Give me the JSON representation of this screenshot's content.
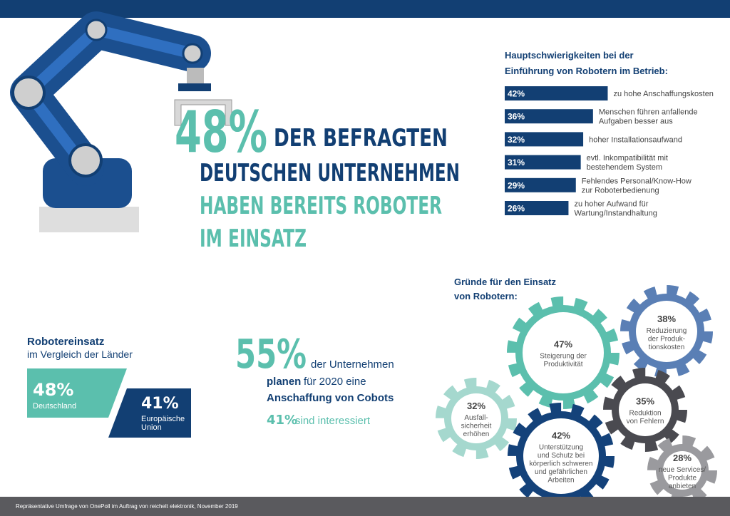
{
  "headline": {
    "percent": "48%",
    "lines": [
      "DER BEFRAGTEN",
      "DEUTSCHEN UNTERNEHMEN",
      "HABEN BEREITS ROBOTER",
      "IM EINSATZ"
    ]
  },
  "chart_data": {
    "type": "bar",
    "title": "Hauptschwierigkeiten bei der\nEinführung von Robotern im Betrieb:",
    "categories": [
      "zu hohe Anschaffungskosten",
      "Menschen führen anfallende\nAufgaben besser aus",
      "hoher Installationsaufwand",
      "evtl. Inkompatibilität mit\nbestehendem System",
      "Fehlendes Personal/Know-How\nzur Roboterbedienung",
      "zu hoher Aufwand für\nWartung/Instandhaltung"
    ],
    "values": [
      42,
      36,
      32,
      31,
      29,
      26
    ],
    "value_labels": [
      "42%",
      "36%",
      "32%",
      "31%",
      "29%",
      "26%"
    ],
    "color": "#123f73"
  },
  "countries": {
    "title": "Robotereinsatz",
    "subtitle": "im Vergleich der Länder",
    "items": [
      {
        "value": "48%",
        "label": "Deutschland"
      },
      {
        "value": "41%",
        "label": "Europäische\nUnion"
      }
    ]
  },
  "cobots": {
    "percent": "55%",
    "line1": "der Unternehmen",
    "line2_bold": "planen",
    "line2": "für 2020 eine",
    "line3": "Anschaffung von Cobots",
    "interested_percent": "41%",
    "interested": "sind interessiert"
  },
  "reasons": {
    "title": "Gründe für den Einsatz\nvon Robotern:",
    "items": [
      {
        "value": "47%",
        "label": "Steigerung der\nProduktivität"
      },
      {
        "value": "38%",
        "label": "Reduzierung\nder Produk-\ntionskosten"
      },
      {
        "value": "35%",
        "label": "Reduktion\nvon Fehlern"
      },
      {
        "value": "32%",
        "label": "Ausfall-\nsicherheit\nerhöhen"
      },
      {
        "value": "42%",
        "label": "Unterstützung\nund Schutz bei\nkörperlich schweren\nund gefährlichen\nArbeiten"
      },
      {
        "value": "28%",
        "label": "neue Services/\nProdukte\nanbieten"
      }
    ]
  },
  "footer": "Repräsentative Umfrage von OnePoll im Auftrag von reichelt elektronik, November 2019"
}
